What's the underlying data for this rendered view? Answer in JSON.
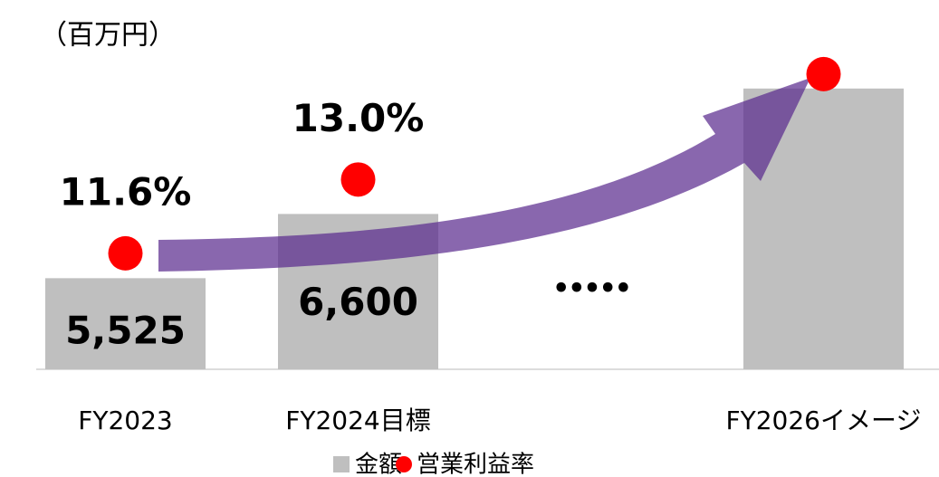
{
  "chart_data": {
    "type": "bar",
    "unit_label": "（百万円）",
    "categories": [
      "FY2023",
      "FY2024目標",
      null,
      "FY2026イメージ"
    ],
    "series": [
      {
        "name": "金額",
        "color": "#bfbfbf",
        "values": [
          5525,
          6600,
          null,
          8700
        ],
        "value_labels": [
          "5,525",
          "6,600",
          null,
          null
        ]
      },
      {
        "name": "営業利益率",
        "color": "#ff0000",
        "axis": "y2",
        "values": [
          11.6,
          13.0,
          null,
          15
        ],
        "value_labels": [
          "11.6%",
          "13.0%",
          null,
          null
        ]
      }
    ],
    "annotation": "•••••",
    "ylim": [
      4000,
      10000
    ],
    "y2lim": [
      9.4,
      16.2
    ]
  }
}
